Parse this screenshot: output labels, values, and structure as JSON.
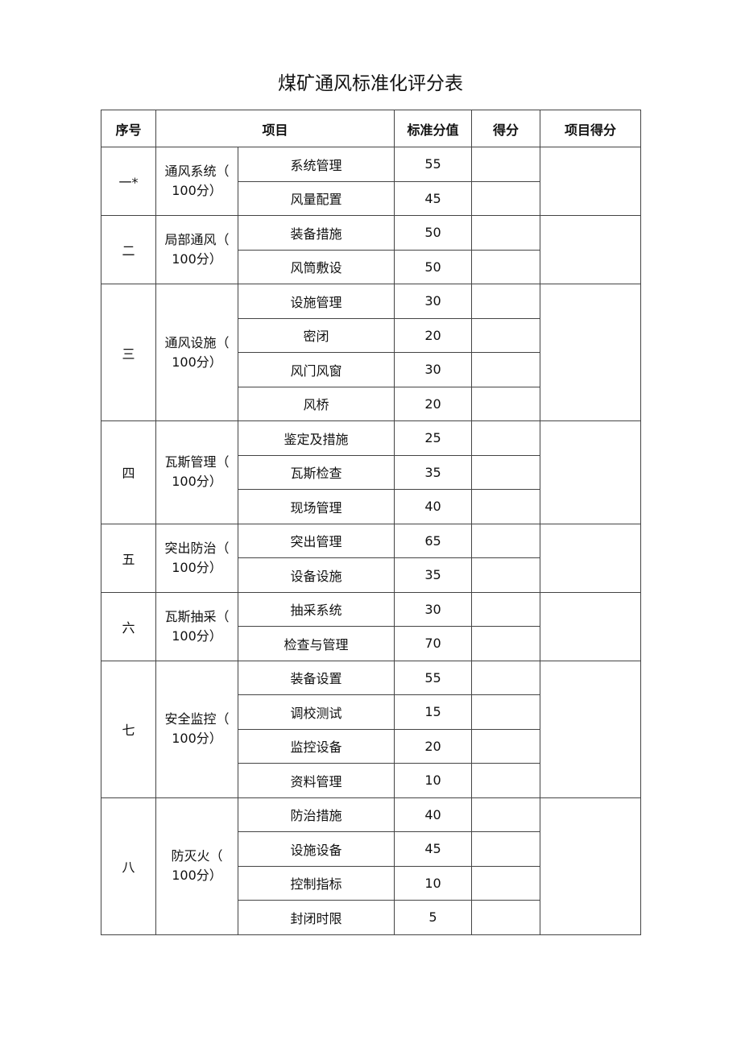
{
  "title": "煤矿通风标准化评分表",
  "headers": {
    "no": "序号",
    "item": "项目",
    "standard": "标准分值",
    "score": "得分",
    "item_score": "项目得分"
  },
  "sections": [
    {
      "no": "一*",
      "category": "通风系统（",
      "category_sub": "100分）",
      "items": [
        {
          "name": "系统管理",
          "value": "55"
        },
        {
          "name": "风量配置",
          "value": "45"
        }
      ]
    },
    {
      "no": "二",
      "category": "局部通风（",
      "category_sub": "100分）",
      "items": [
        {
          "name": "装备措施",
          "value": "50"
        },
        {
          "name": "风筒敷设",
          "value": "50"
        }
      ]
    },
    {
      "no": "三",
      "category": "通风设施（",
      "category_sub": "100分）",
      "items": [
        {
          "name": "设施管理",
          "value": "30"
        },
        {
          "name": "密闭",
          "value": "20"
        },
        {
          "name": "风门风窗",
          "value": "30"
        },
        {
          "name": "风桥",
          "value": "20"
        }
      ]
    },
    {
      "no": "四",
      "category": "瓦斯管理（",
      "category_sub": "100分）",
      "items": [
        {
          "name": "鉴定及措施",
          "value": "25"
        },
        {
          "name": "瓦斯检查",
          "value": "35"
        },
        {
          "name": "现场管理",
          "value": "40"
        }
      ]
    },
    {
      "no": "五",
      "category": "突出防治（",
      "category_sub": "100分）",
      "items": [
        {
          "name": "突出管理",
          "value": "65"
        },
        {
          "name": "设备设施",
          "value": "35"
        }
      ]
    },
    {
      "no": "六",
      "category": "瓦斯抽采（",
      "category_sub": "100分）",
      "items": [
        {
          "name": "抽采系统",
          "value": "30"
        },
        {
          "name": "检查与管理",
          "value": "70"
        }
      ]
    },
    {
      "no": "七",
      "category": "安全监控（",
      "category_sub": "100分）",
      "items": [
        {
          "name": "装备设置",
          "value": "55"
        },
        {
          "name": "调校测试",
          "value": "15"
        },
        {
          "name": "监控设备",
          "value": "20"
        },
        {
          "name": "资料管理",
          "value": "10"
        }
      ]
    },
    {
      "no": "八",
      "category": "防灭火（",
      "category_sub": "100分）",
      "items": [
        {
          "name": "防治措施",
          "value": "40"
        },
        {
          "name": "设施设备",
          "value": "45"
        },
        {
          "name": "控制指标",
          "value": "10"
        },
        {
          "name": "封闭时限",
          "value": "5"
        }
      ]
    }
  ]
}
